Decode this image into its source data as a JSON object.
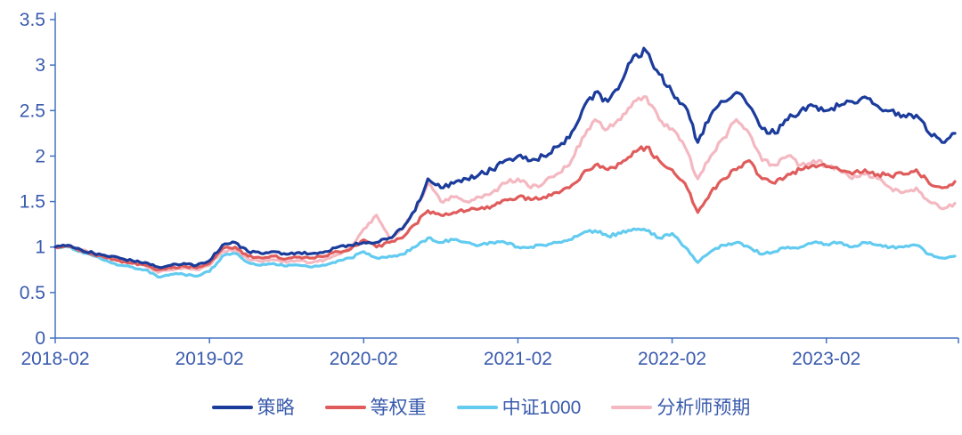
{
  "chart_data": {
    "type": "line",
    "title": "",
    "x_start": "2018-02",
    "x_end": "2023-12",
    "x_tick_labels": [
      "2018-02",
      "2019-02",
      "2020-02",
      "2021-02",
      "2022-02",
      "2023-02"
    ],
    "x_tick_indices": [
      0,
      12,
      24,
      36,
      48,
      60
    ],
    "y_tick_labels": [
      "0",
      "0.5",
      "1",
      "1.5",
      "2",
      "2.5",
      "3",
      "3.5"
    ],
    "y_tick_values": [
      0,
      0.5,
      1,
      1.5,
      2,
      2.5,
      3,
      3.5
    ],
    "ylim": [
      0,
      3.5
    ],
    "grid": false,
    "legend_position": "bottom",
    "axis_color": "#4472C4",
    "label_color": "#3A5BAD",
    "background": "#FFFFFF",
    "series": [
      {
        "name": "策略",
        "color": "#1B3C9B",
        "values": [
          1.0,
          1.02,
          0.97,
          0.93,
          0.9,
          0.88,
          0.85,
          0.83,
          0.78,
          0.8,
          0.82,
          0.8,
          0.85,
          1.02,
          1.05,
          0.95,
          0.93,
          0.95,
          0.92,
          0.94,
          0.93,
          0.95,
          1.0,
          1.02,
          1.05,
          1.05,
          1.1,
          1.2,
          1.4,
          1.75,
          1.65,
          1.7,
          1.75,
          1.8,
          1.85,
          1.95,
          2.0,
          1.95,
          2.0,
          2.1,
          2.2,
          2.5,
          2.7,
          2.6,
          2.8,
          3.1,
          3.15,
          2.9,
          2.7,
          2.55,
          2.15,
          2.45,
          2.6,
          2.7,
          2.55,
          2.3,
          2.25,
          2.4,
          2.5,
          2.55,
          2.5,
          2.55,
          2.6,
          2.65,
          2.55,
          2.5,
          2.45,
          2.45,
          2.25,
          2.15,
          2.25
        ]
      },
      {
        "name": "等权重",
        "color": "#E05C5C",
        "values": [
          1.0,
          1.01,
          0.96,
          0.92,
          0.88,
          0.85,
          0.82,
          0.8,
          0.75,
          0.77,
          0.79,
          0.77,
          0.82,
          0.98,
          1.0,
          0.9,
          0.88,
          0.9,
          0.87,
          0.89,
          0.88,
          0.9,
          0.95,
          0.98,
          1.08,
          1.0,
          1.05,
          1.1,
          1.25,
          1.4,
          1.35,
          1.38,
          1.4,
          1.42,
          1.45,
          1.52,
          1.55,
          1.52,
          1.55,
          1.6,
          1.65,
          1.8,
          1.9,
          1.85,
          1.92,
          2.05,
          2.1,
          1.95,
          1.85,
          1.7,
          1.38,
          1.6,
          1.75,
          1.85,
          1.95,
          1.75,
          1.7,
          1.8,
          1.85,
          1.9,
          1.88,
          1.85,
          1.8,
          1.85,
          1.8,
          1.78,
          1.8,
          1.85,
          1.7,
          1.65,
          1.72
        ]
      },
      {
        "name": "中证1000",
        "color": "#63CBF0",
        "values": [
          1.0,
          1.0,
          0.95,
          0.9,
          0.85,
          0.8,
          0.78,
          0.75,
          0.67,
          0.7,
          0.7,
          0.68,
          0.73,
          0.9,
          0.93,
          0.83,
          0.8,
          0.82,
          0.79,
          0.8,
          0.78,
          0.8,
          0.85,
          0.88,
          0.95,
          0.88,
          0.9,
          0.92,
          1.0,
          1.1,
          1.05,
          1.08,
          1.05,
          1.02,
          1.05,
          1.05,
          1.0,
          1.0,
          1.02,
          1.05,
          1.08,
          1.15,
          1.18,
          1.12,
          1.15,
          1.2,
          1.18,
          1.1,
          1.15,
          1.0,
          0.83,
          0.95,
          1.02,
          1.05,
          1.0,
          0.92,
          0.95,
          1.0,
          1.0,
          1.05,
          1.03,
          1.05,
          1.0,
          1.05,
          1.02,
          1.0,
          1.0,
          1.02,
          0.92,
          0.88,
          0.9
        ]
      },
      {
        "name": "分析师预期",
        "color": "#F4B8C1",
        "values": [
          1.0,
          1.02,
          0.97,
          0.93,
          0.9,
          0.87,
          0.83,
          0.8,
          0.72,
          0.75,
          0.77,
          0.75,
          0.8,
          0.95,
          0.97,
          0.87,
          0.84,
          0.86,
          0.83,
          0.85,
          0.83,
          0.86,
          0.92,
          1.0,
          1.2,
          1.35,
          1.1,
          1.2,
          1.4,
          1.7,
          1.5,
          1.55,
          1.5,
          1.55,
          1.6,
          1.7,
          1.75,
          1.65,
          1.7,
          1.8,
          1.9,
          2.2,
          2.4,
          2.3,
          2.4,
          2.6,
          2.65,
          2.4,
          2.3,
          2.1,
          1.75,
          2.0,
          2.2,
          2.4,
          2.25,
          1.95,
          1.9,
          2.0,
          1.9,
          1.95,
          1.9,
          1.85,
          1.75,
          1.8,
          1.75,
          1.65,
          1.6,
          1.65,
          1.5,
          1.42,
          1.48
        ]
      }
    ],
    "draw_order": [
      "分析师预期",
      "中证1000",
      "等权重",
      "策略"
    ],
    "legend_items": [
      "策略",
      "等权重",
      "中证1000",
      "分析师预期"
    ]
  }
}
